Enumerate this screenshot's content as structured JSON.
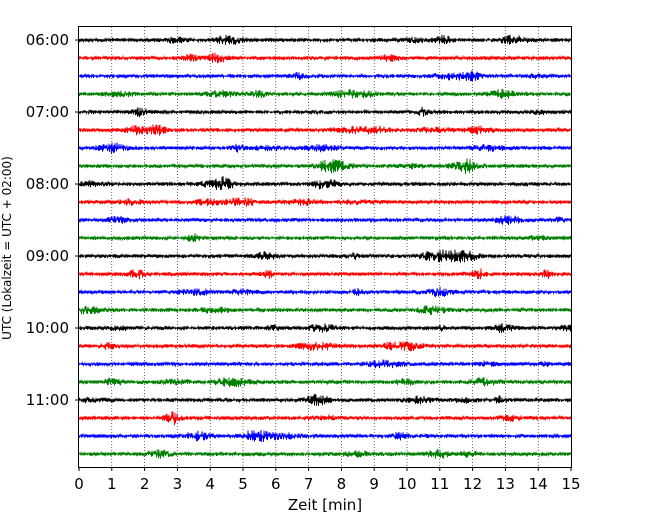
{
  "chart_data": {
    "type": "line",
    "title": "",
    "xlabel": "Zeit  [min]",
    "ylabel": "UTC (Lokalzeit = UTC + 02:00)",
    "xlim": [
      0,
      15
    ],
    "x_ticks": [
      "0",
      "1",
      "2",
      "3",
      "4",
      "5",
      "6",
      "7",
      "8",
      "9",
      "10",
      "11",
      "12",
      "13",
      "14",
      "15"
    ],
    "y_tick_labels": [
      "06:00",
      "07:00",
      "08:00",
      "09:00",
      "10:00",
      "11:00"
    ],
    "trace_start_times": [
      "06:00",
      "06:15",
      "06:30",
      "06:45",
      "07:00",
      "07:15",
      "07:30",
      "07:45",
      "08:00",
      "08:15",
      "08:30",
      "08:45",
      "09:00",
      "09:15",
      "09:30",
      "09:45",
      "10:00",
      "10:15",
      "10:30",
      "10:45",
      "11:00",
      "11:15",
      "11:30",
      "11:45"
    ],
    "trace_colors": [
      "#000000",
      "#ff0000",
      "#0000ff",
      "#008000"
    ],
    "grid": "vertical-dotted",
    "legend": "none"
  }
}
